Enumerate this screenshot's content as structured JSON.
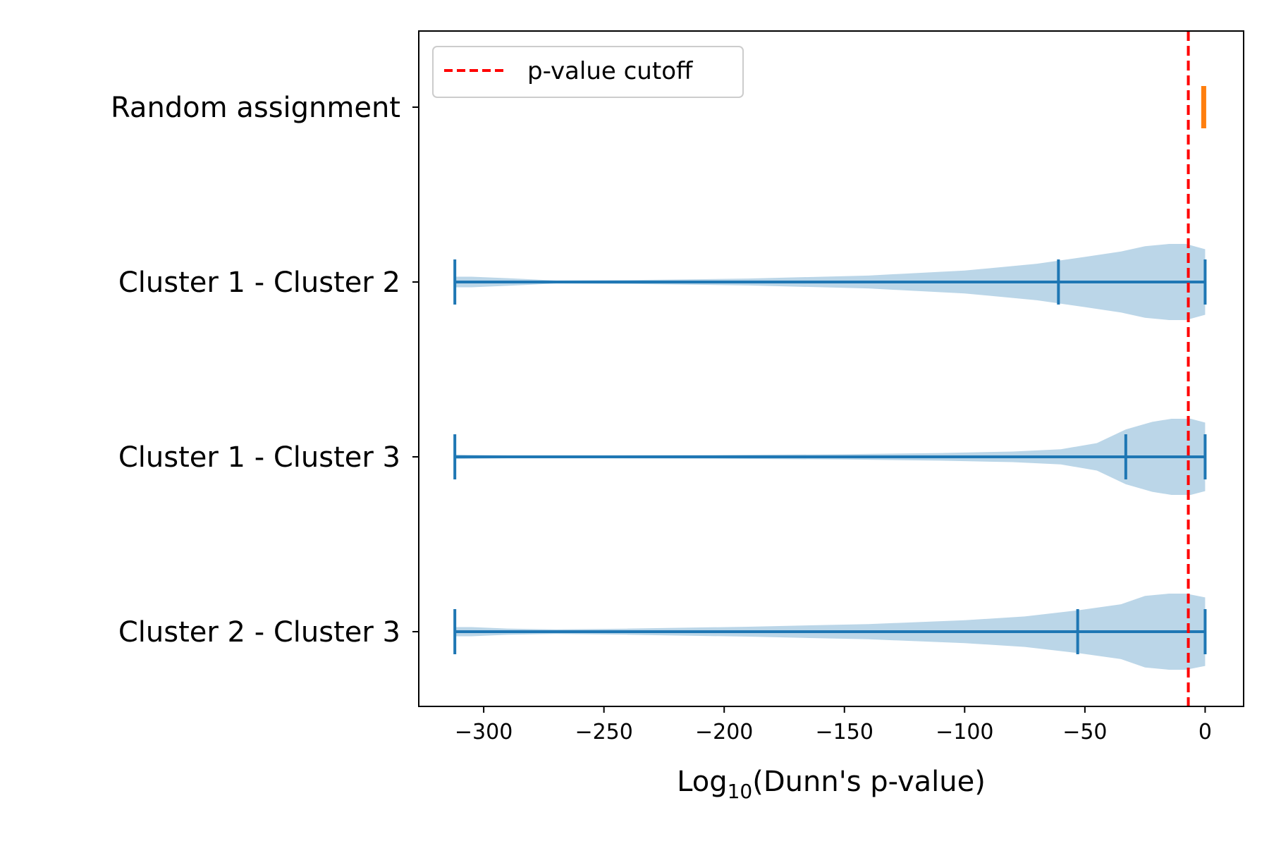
{
  "chart_data": {
    "type": "violin",
    "orientation": "horizontal",
    "categories": [
      "Random assignment",
      "Cluster 1 - Cluster 2",
      "Cluster 1 - Cluster 3",
      "Cluster 2 - Cluster 3"
    ],
    "series": [
      {
        "category": "Random assignment",
        "color": "#ff7f0e",
        "min": -1.2,
        "median": -0.5,
        "max": 0,
        "density": [
          [
            0,
            0.05
          ],
          [
            -0.3,
            0.25
          ],
          [
            -0.6,
            0.25
          ],
          [
            -0.9,
            0.25
          ],
          [
            -1.2,
            0.05
          ]
        ]
      },
      {
        "category": "Cluster 1 - Cluster 2",
        "color": "#1f77b4",
        "min": -312,
        "median": -61,
        "max": 0,
        "density": [
          [
            0,
            0.43
          ],
          [
            -8,
            0.5
          ],
          [
            -15,
            0.5
          ],
          [
            -25,
            0.47
          ],
          [
            -35,
            0.4
          ],
          [
            -50,
            0.33
          ],
          [
            -70,
            0.24
          ],
          [
            -100,
            0.15
          ],
          [
            -140,
            0.085
          ],
          [
            -190,
            0.045
          ],
          [
            -240,
            0.025
          ],
          [
            -270,
            0.02
          ],
          [
            -290,
            0.05
          ],
          [
            -305,
            0.07
          ],
          [
            -312,
            0.07
          ]
        ]
      },
      {
        "category": "Cluster 1 - Cluster 3",
        "color": "#1f77b4",
        "min": -312,
        "median": -33,
        "max": 0,
        "density": [
          [
            0,
            0.45
          ],
          [
            -6,
            0.5
          ],
          [
            -14,
            0.5
          ],
          [
            -22,
            0.46
          ],
          [
            -33,
            0.36
          ],
          [
            -45,
            0.18
          ],
          [
            -60,
            0.1
          ],
          [
            -80,
            0.07
          ],
          [
            -110,
            0.05
          ],
          [
            -150,
            0.035
          ],
          [
            -200,
            0.025
          ],
          [
            -250,
            0.02
          ],
          [
            -290,
            0.02
          ],
          [
            -305,
            0.025
          ],
          [
            -312,
            0.03
          ]
        ]
      },
      {
        "category": "Cluster 2 - Cluster 3",
        "color": "#1f77b4",
        "min": -312,
        "median": -53,
        "max": 0,
        "density": [
          [
            0,
            0.45
          ],
          [
            -8,
            0.5
          ],
          [
            -15,
            0.5
          ],
          [
            -25,
            0.47
          ],
          [
            -35,
            0.36
          ],
          [
            -53,
            0.28
          ],
          [
            -75,
            0.2
          ],
          [
            -100,
            0.15
          ],
          [
            -140,
            0.1
          ],
          [
            -190,
            0.065
          ],
          [
            -240,
            0.04
          ],
          [
            -270,
            0.03
          ],
          [
            -290,
            0.04
          ],
          [
            -305,
            0.06
          ],
          [
            -312,
            0.06
          ]
        ]
      }
    ],
    "cutoff": {
      "x": -7,
      "label": "p-value cutoff",
      "color": "#ff0000"
    },
    "xlim": [
      -327,
      16
    ],
    "xticks": [
      -300,
      -250,
      -200,
      -150,
      -100,
      -50,
      0
    ],
    "xtick_labels": [
      "−300",
      "−250",
      "−200",
      "−150",
      "−100",
      "−50",
      "0"
    ],
    "xlabel_main": "Log",
    "xlabel_sub": "10",
    "xlabel_rest": "(Dunn's p-value)",
    "legend": {
      "position": "upper-left",
      "entries": [
        "p-value cutoff"
      ]
    },
    "grid": false
  }
}
